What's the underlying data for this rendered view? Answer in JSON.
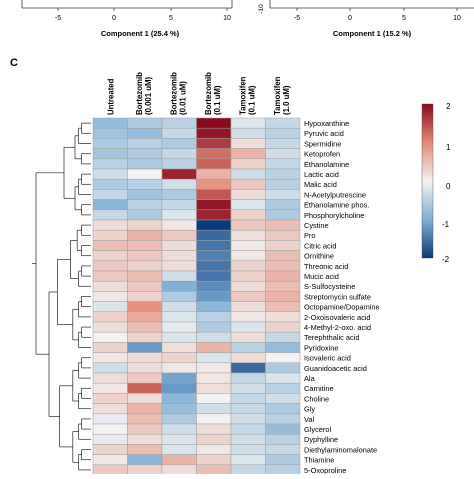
{
  "top_panels": {
    "left": {
      "xlabel": "Component 1 (25.4 %)",
      "ticks": [
        "-5",
        "0",
        "5",
        "10"
      ]
    },
    "right": {
      "xlabel": "Component 1 (15.2 %)",
      "yticks": [
        "-10"
      ],
      "ticks": [
        "-5",
        "0",
        "5",
        "10"
      ]
    }
  },
  "panel_label": "C",
  "chart_data": {
    "type": "heatmap",
    "columns": [
      "Untreated",
      "Bortezomib\n(0.001 uM)",
      "Bortezomib\n(0.01 uM)",
      "Bortezomib\n(0.1 uM)",
      "Tamoxifen\n(0.1 uM)",
      "Tamoxifen\n(1.0 uM)"
    ],
    "rows": [
      "Hypoxanthine",
      "Pyruvic acid",
      "Spermidine",
      "Ketoprofen",
      "Ethanolamine",
      "Lactic acid",
      "Malic acid",
      "N-Acetylputrescine",
      "Ethanolamine phos.",
      "Phosphorylcholine",
      "Cystine",
      "Pro",
      "Citric acid",
      "Ornithine",
      "Threonic acid",
      "Mucic acid",
      "S-Sulfocysteine",
      "Streptomycin sulfate",
      "Octopamine/Dopamine",
      "2-Oxoisovaleric acid",
      "4-Methyl-2-oxo. acid",
      "Terephthalic acid",
      "Pyridoxine",
      "Isovaleric acid",
      "Guanidoacetic acid",
      "Ala",
      "Carnitine",
      "Choline",
      "Gly",
      "Val",
      "Glycerol",
      "Dyphylline",
      "Diethylaminomalonate",
      "Thiamine",
      "5-Oxoproline"
    ],
    "values": [
      [
        -0.8,
        -0.6,
        -0.5,
        2.0,
        -0.2,
        -0.4
      ],
      [
        -0.7,
        -0.8,
        -0.4,
        1.9,
        -0.3,
        -0.5
      ],
      [
        -0.6,
        -0.5,
        -0.6,
        1.6,
        0.2,
        -0.4
      ],
      [
        -0.7,
        -0.6,
        -0.4,
        1.2,
        0.6,
        -0.3
      ],
      [
        -0.5,
        -0.6,
        -0.5,
        1.3,
        0.3,
        -0.4
      ],
      [
        -0.3,
        0.0,
        1.8,
        0.6,
        -0.3,
        -0.5
      ],
      [
        -0.6,
        -0.5,
        -0.3,
        0.9,
        0.4,
        -0.5
      ],
      [
        -0.4,
        -0.7,
        -0.6,
        1.4,
        0.2,
        -0.3
      ],
      [
        -0.9,
        -0.5,
        -0.4,
        1.9,
        -0.2,
        -0.6
      ],
      [
        -0.4,
        -0.6,
        -0.2,
        1.8,
        0.3,
        -0.6
      ],
      [
        0.2,
        0.3,
        0.1,
        -2.0,
        0.4,
        0.5
      ],
      [
        0.3,
        0.6,
        0.4,
        -1.6,
        0.2,
        0.4
      ],
      [
        0.5,
        0.5,
        0.2,
        -1.5,
        0.1,
        0.3
      ],
      [
        0.3,
        0.4,
        0.2,
        -1.4,
        0.1,
        0.5
      ],
      [
        0.4,
        0.3,
        0.2,
        -1.5,
        0.3,
        0.5
      ],
      [
        0.4,
        0.5,
        -0.3,
        -1.5,
        0.3,
        0.6
      ],
      [
        0.2,
        0.4,
        -1.0,
        -1.3,
        0.2,
        0.5
      ],
      [
        0.1,
        0.3,
        -0.6,
        -1.2,
        0.4,
        0.6
      ],
      [
        -0.2,
        0.9,
        -0.3,
        -0.9,
        0.2,
        0.5
      ],
      [
        0.3,
        0.7,
        -0.2,
        -0.5,
        0.1,
        0.2
      ],
      [
        0.2,
        0.5,
        -0.1,
        -0.6,
        -0.2,
        0.3
      ],
      [
        0.0,
        0.3,
        -0.2,
        -0.3,
        0.2,
        -0.4
      ],
      [
        0.3,
        -1.2,
        0.2,
        0.6,
        -0.5,
        -0.8
      ],
      [
        0.1,
        0.2,
        0.3,
        -0.2,
        0.2,
        0.0
      ],
      [
        -0.3,
        0.2,
        0.1,
        0.1,
        -1.6,
        -0.6
      ],
      [
        0.2,
        0.4,
        -1.1,
        0.1,
        -0.4,
        -0.2
      ],
      [
        0.1,
        1.3,
        -1.2,
        0.2,
        -0.3,
        -0.5
      ],
      [
        0.3,
        0.2,
        -0.9,
        0.0,
        -0.4,
        -0.3
      ],
      [
        0.2,
        0.6,
        -0.8,
        -0.3,
        -0.4,
        -0.6
      ],
      [
        -0.1,
        0.5,
        -0.6,
        0.0,
        -0.3,
        -0.5
      ],
      [
        0.0,
        0.4,
        -0.3,
        0.2,
        -0.4,
        -0.8
      ],
      [
        -0.1,
        0.2,
        -0.2,
        0.3,
        -0.3,
        -0.5
      ],
      [
        0.3,
        0.5,
        -0.2,
        0.1,
        -0.3,
        -0.4
      ],
      [
        0.1,
        -0.9,
        0.6,
        0.3,
        -0.2,
        -0.6
      ],
      [
        0.4,
        0.3,
        0.2,
        0.5,
        -0.4,
        -0.5
      ]
    ],
    "colorbar": {
      "ticks": [
        "2",
        "1",
        "0",
        "-1",
        "-2"
      ],
      "range": [
        -2,
        2
      ]
    },
    "colors": {
      "high": "#8b0a1e",
      "mid": "#f2f2f2",
      "low": "#0a3a7a"
    }
  }
}
